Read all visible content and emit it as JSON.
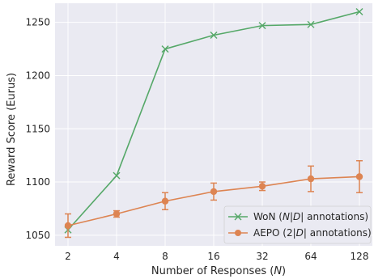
{
  "chart_data": {
    "type": "line",
    "xlabel": "Number of Responses (N)",
    "ylabel": "Reward Score (Eurus)",
    "x_ticks": [
      "2",
      "4",
      "8",
      "16",
      "32",
      "64",
      "128"
    ],
    "y_ticks": [
      1050,
      1100,
      1150,
      1200,
      1250
    ],
    "ylim": [
      1040,
      1268
    ],
    "grid": true,
    "legend_position": "bottom-right",
    "series": [
      {
        "name": "WoN (N|D| annotations)",
        "color": "#55a868",
        "marker": "x",
        "values": [
          1055,
          1106,
          1225,
          1238,
          1247,
          1248,
          1260
        ]
      },
      {
        "name": "AEPO (2|D| annotations)",
        "color": "#dd8452",
        "marker": "circle",
        "values": [
          1059,
          1070,
          1082,
          1091,
          1096,
          1103,
          1105
        ],
        "error": [
          11,
          3,
          8,
          8,
          4,
          12,
          15
        ]
      }
    ]
  }
}
